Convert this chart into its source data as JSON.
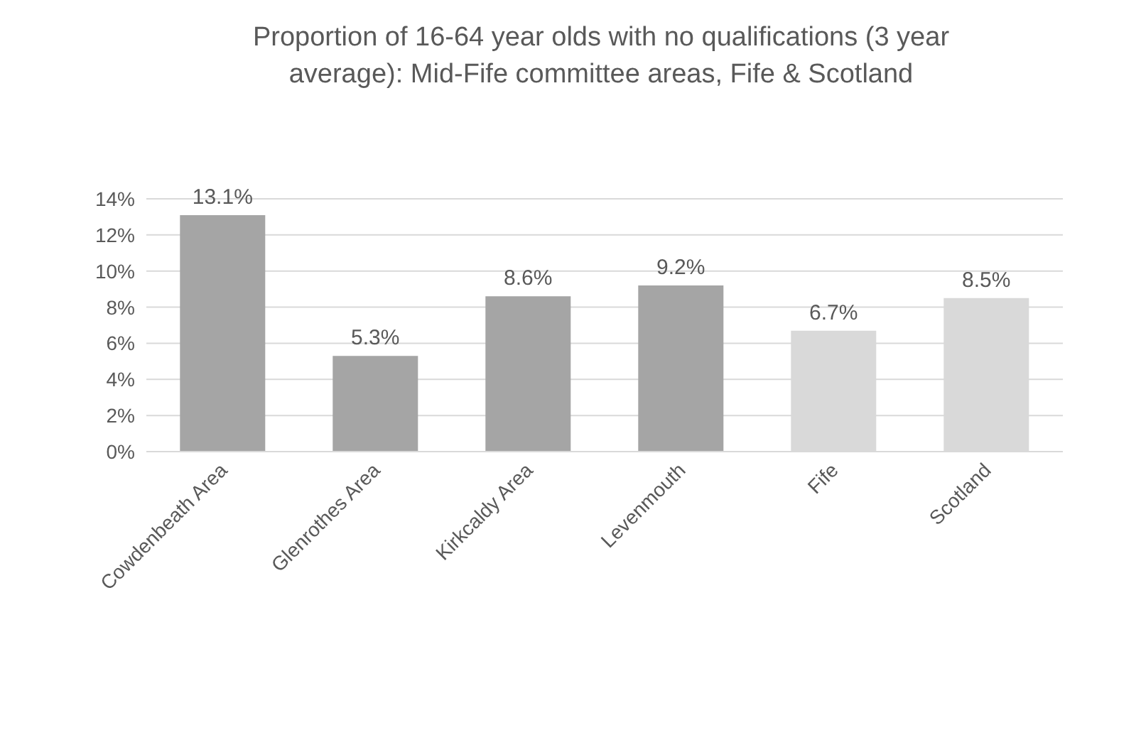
{
  "chart_data": {
    "type": "bar",
    "title": "Proportion of 16-64 year olds with no qualifications (3 year average): Mid-Fife committee areas, Fife & Scotland",
    "categories": [
      "Cowdenbeath Area",
      "Glenrothes Area",
      "Kirkcaldy Area",
      "Levenmouth",
      "Fife",
      "Scotland"
    ],
    "values": [
      13.1,
      5.3,
      8.6,
      9.2,
      6.7,
      8.5
    ],
    "colors": [
      "#a5a5a5",
      "#a5a5a5",
      "#a5a5a5",
      "#a5a5a5",
      "#d9d9d9",
      "#d9d9d9"
    ],
    "value_labels": [
      "13.1%",
      "5.3%",
      "8.6%",
      "9.2%",
      "6.7%",
      "8.5%"
    ],
    "ylim": [
      0,
      14
    ],
    "yticks": [
      {
        "value": 0,
        "label": "0%"
      },
      {
        "value": 2,
        "label": "2%"
      },
      {
        "value": 4,
        "label": "4%"
      },
      {
        "value": 6,
        "label": "6%"
      },
      {
        "value": 8,
        "label": "8%"
      },
      {
        "value": 10,
        "label": "10%"
      },
      {
        "value": 12,
        "label": "12%"
      },
      {
        "value": 14,
        "label": "14%"
      }
    ],
    "grid": "y",
    "legend": false
  }
}
